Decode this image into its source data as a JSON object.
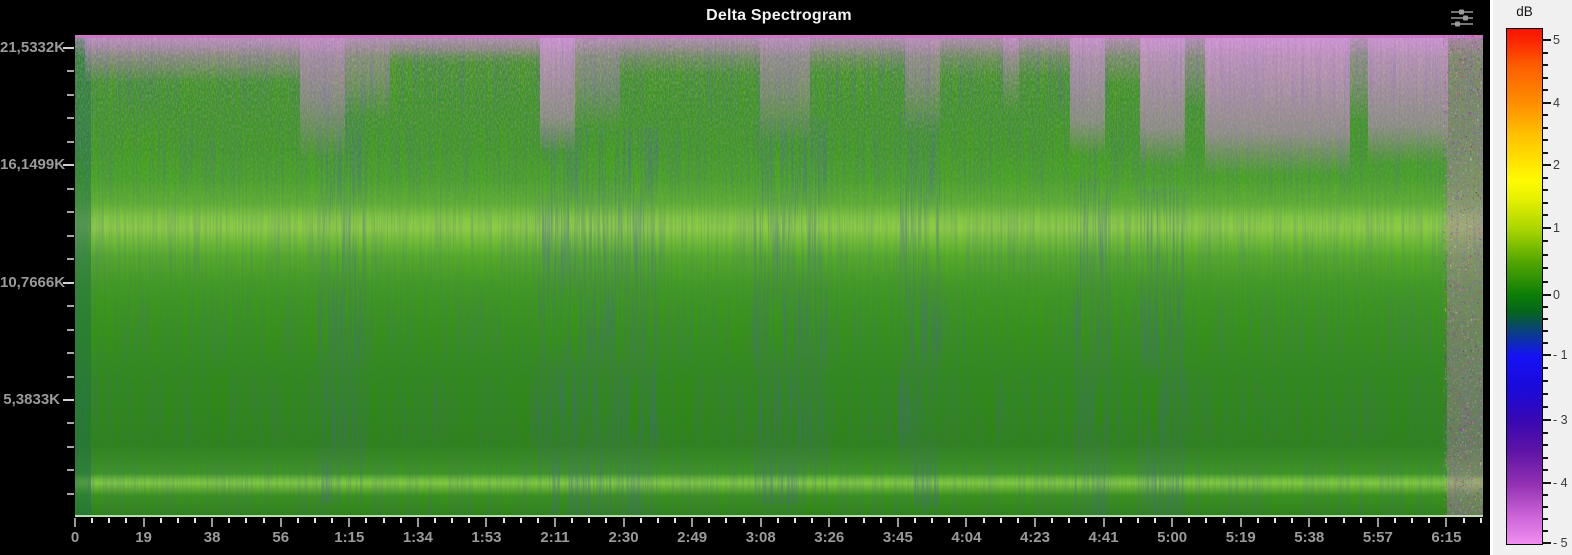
{
  "header": {
    "title": "Delta Spectrogram",
    "settings_icon": "sliders-icon"
  },
  "y_axis": {
    "tick_labels": [
      "21,5332K",
      "16,1499K",
      "10,7666K",
      "5,3833K"
    ]
  },
  "x_axis": {
    "tick_labels": [
      "0",
      "19",
      "38",
      "56",
      "1:15",
      "1:34",
      "1:53",
      "2:11",
      "2:30",
      "2:49",
      "3:08",
      "3:26",
      "3:45",
      "4:04",
      "4:23",
      "4:41",
      "5:00",
      "5:19",
      "5:38",
      "5:57",
      "6:15"
    ]
  },
  "colorbar": {
    "title": "dB",
    "tick_labels": [
      "5",
      "4",
      "2",
      "1",
      "0",
      "- 1",
      "- 3",
      "- 4",
      "- 5"
    ],
    "gradient": [
      {
        "p": 0,
        "c": "#f81400"
      },
      {
        "p": 2.3,
        "c": "#fb2600"
      },
      {
        "p": 7,
        "c": "#fd5c00"
      },
      {
        "p": 14.6,
        "c": "#ff9000"
      },
      {
        "p": 21,
        "c": "#ffc400"
      },
      {
        "p": 26.6,
        "c": "#ffe800"
      },
      {
        "p": 29.5,
        "c": "#fdfb02"
      },
      {
        "p": 33,
        "c": "#e6f000"
      },
      {
        "p": 38.8,
        "c": "#abd600"
      },
      {
        "p": 45,
        "c": "#55a800"
      },
      {
        "p": 51.8,
        "c": "#0b7d07"
      },
      {
        "p": 55,
        "c": "#06641e"
      },
      {
        "p": 58.5,
        "c": "#08427c"
      },
      {
        "p": 63.5,
        "c": "#1512f4"
      },
      {
        "p": 70,
        "c": "#1b0ad8"
      },
      {
        "p": 76.2,
        "c": "#3908b2"
      },
      {
        "p": 82,
        "c": "#5e14a6"
      },
      {
        "p": 88.4,
        "c": "#9331b3"
      },
      {
        "p": 94,
        "c": "#c75fd4"
      },
      {
        "p": 100,
        "c": "#f18ef1"
      }
    ]
  },
  "chart_data": {
    "type": "heatmap",
    "variant": "spectrogram",
    "title": "Delta Spectrogram",
    "x": {
      "unit": "time (m:ss)",
      "tick_labels": [
        "0",
        "19",
        "38",
        "56",
        "1:15",
        "1:34",
        "1:53",
        "2:11",
        "2:30",
        "2:49",
        "3:08",
        "3:26",
        "3:45",
        "4:04",
        "4:23",
        "4:41",
        "5:00",
        "5:19",
        "5:38",
        "5:57",
        "6:15"
      ],
      "approx_range_seconds": [
        0,
        385
      ],
      "major_tick_interval_seconds": 19
    },
    "y": {
      "unit": "frequency (Hz)",
      "tick_labels": [
        "21,5332K",
        "16,1499K",
        "10,7666K",
        "5,3833K"
      ],
      "tick_values_hz": [
        21533.2,
        16149.9,
        10766.6,
        5383.3
      ],
      "approx_range_hz": [
        0,
        22100
      ]
    },
    "z": {
      "unit": "dB",
      "colorbar_tick_labels": [
        "5",
        "4",
        "2",
        "1",
        "0",
        "- 1",
        "- 3",
        "- 4",
        "- 5"
      ],
      "range_db": [
        -5,
        5
      ],
      "color_mapping": [
        {
          "db": 5,
          "color": "#fb2600"
        },
        {
          "db": 4,
          "color": "#ff9000"
        },
        {
          "db": 2,
          "color": "#ffe800"
        },
        {
          "db": 1,
          "color": "#abd600"
        },
        {
          "db": 0,
          "color": "#0b7d07"
        },
        {
          "db": -1,
          "color": "#1512f4"
        },
        {
          "db": -3,
          "color": "#3908b2"
        },
        {
          "db": -4,
          "color": "#9331b3"
        },
        {
          "db": -5,
          "color": "#f18ef1"
        }
      ]
    },
    "legend_position": "right",
    "grid": false,
    "features": [
      "Dominant mid-green field (~0 to +1 dB) over most of the time-frequency plane",
      "Bright yellow-green horizontal band around 13-14 kHz across the full duration",
      "Thin bright green horizontal band around 1.5 kHz across the full duration",
      "Pink/magenta (negative dB) energy along the top band (17-22 kHz), strongest columns near 1:10, 2:05, 3:05, 3:45, 4:50 and broadly from 5:10 to 6:10",
      "Vertical blue/dark noisy streak columns scattered throughout, denser near 1:10-1:30, 2:05-2:35, 3:00-3:20, 3:40-3:50",
      "Multicolored (red/blue/purple) noise strip at the far right edge near 6:20"
    ]
  }
}
